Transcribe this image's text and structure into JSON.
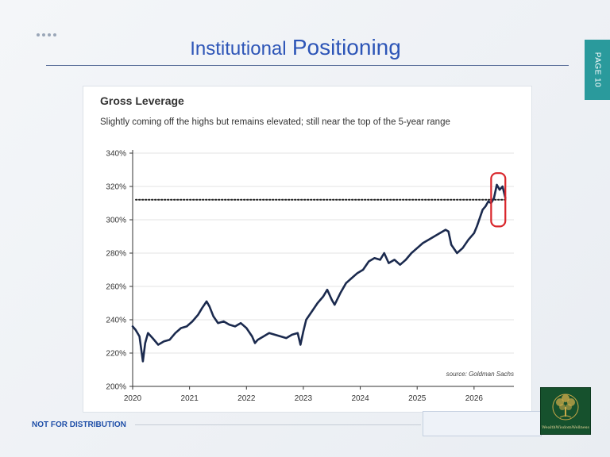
{
  "slide": {
    "title_part1": "Institutional",
    "title_part2": "Positioning",
    "page_label": "PAGE 10",
    "footer": "NOT FOR DISTRIBUTION",
    "logo_text": "WealthWisdomWellness"
  },
  "colors": {
    "title": "#2d55b7",
    "tab": "#2a9a9c",
    "series": "#1b2a4e",
    "highlight": "#d9262b",
    "logo_bg": "#16512d"
  },
  "chart_data": {
    "type": "line",
    "title": "Gross Leverage",
    "subtitle": "Slightly coming off the highs but remains elevated; still near the top of the 5-year range",
    "source": "source: Goldman Sachs",
    "x_ticks": [
      "2020",
      "2021",
      "2022",
      "2023",
      "2024",
      "2025",
      "2026"
    ],
    "y_ticks": [
      "200%",
      "220%",
      "240%",
      "260%",
      "280%",
      "300%",
      "320%",
      "340%"
    ],
    "xlim": [
      2020,
      2026.7
    ],
    "ylim": [
      200,
      340
    ],
    "grid": "horizontal",
    "reference_line": {
      "value": 312,
      "style": "dotted"
    },
    "highlight": {
      "x_range": [
        2026.3,
        2026.55
      ],
      "y_range": [
        296,
        328
      ],
      "style": "red-rounded-box"
    },
    "series": [
      {
        "x": [
          2020.0,
          2020.05,
          2020.12,
          2020.18,
          2020.22,
          2020.27,
          2020.35,
          2020.45,
          2020.55,
          2020.65,
          2020.75,
          2020.85,
          2020.95,
          2021.05,
          2021.15,
          2021.22,
          2021.3,
          2021.35,
          2021.42,
          2021.5,
          2021.6,
          2021.7,
          2021.8,
          2021.9,
          2022.0,
          2022.1,
          2022.15,
          2022.2,
          2022.3,
          2022.4,
          2022.5,
          2022.6,
          2022.7,
          2022.8,
          2022.9,
          2022.95,
          2023.0,
          2023.05,
          2023.15,
          2023.25,
          2023.35,
          2023.42,
          2023.5,
          2023.55,
          2023.65,
          2023.75,
          2023.85,
          2023.95,
          2024.05,
          2024.15,
          2024.25,
          2024.35,
          2024.42,
          2024.5,
          2024.6,
          2024.7,
          2024.8,
          2024.9,
          2025.0,
          2025.1,
          2025.2,
          2025.3,
          2025.4,
          2025.5,
          2025.55,
          2025.6,
          2025.7,
          2025.8,
          2025.9,
          2026.0,
          2026.05,
          2026.1,
          2026.15,
          2026.2,
          2026.25,
          2026.3,
          2026.35,
          2026.4,
          2026.45,
          2026.5,
          2026.55
        ],
        "y": [
          236,
          234,
          230,
          215,
          226,
          232,
          229,
          225,
          227,
          228,
          232,
          235,
          236,
          239,
          243,
          247,
          251,
          248,
          242,
          238,
          239,
          237,
          236,
          238,
          235,
          230,
          226,
          228,
          230,
          232,
          231,
          230,
          229,
          231,
          232,
          225,
          233,
          240,
          245,
          250,
          254,
          258,
          252,
          249,
          256,
          262,
          265,
          268,
          270,
          275,
          277,
          276,
          280,
          274,
          276,
          273,
          276,
          280,
          283,
          286,
          288,
          290,
          292,
          294,
          293,
          285,
          280,
          283,
          288,
          292,
          296,
          301,
          306,
          308,
          311,
          310,
          313,
          321,
          318,
          320,
          313
        ]
      }
    ]
  }
}
